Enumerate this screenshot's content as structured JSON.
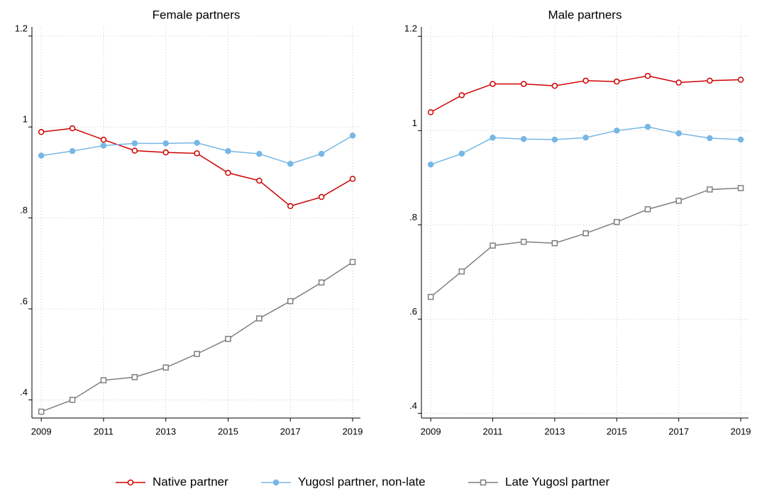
{
  "chart_data": [
    {
      "type": "line",
      "title": "Female partners",
      "x": [
        2009,
        2010,
        2011,
        2012,
        2013,
        2014,
        2015,
        2016,
        2017,
        2018,
        2019
      ],
      "xlim": [
        2008.7,
        2019.25
      ],
      "xticks": [
        2009,
        2011,
        2013,
        2015,
        2017,
        2019
      ],
      "ylim": [
        0.36,
        1.22
      ],
      "yticks": [
        {
          "value": 0.4,
          "label": ".4"
        },
        {
          "value": 0.6,
          "label": ".6"
        },
        {
          "value": 0.8,
          "label": ".8"
        },
        1,
        1.2
      ],
      "grid": true,
      "series": [
        {
          "name": "Native partner",
          "color": "#cc0000",
          "marker": "circle-open",
          "values": [
            0.989,
            0.997,
            0.972,
            0.948,
            0.944,
            0.942,
            0.899,
            0.882,
            0.826,
            0.846,
            0.886
          ]
        },
        {
          "name": "Yugosl partner, non-late",
          "color": "#76b7e5",
          "marker": "circle",
          "values": [
            0.937,
            0.947,
            0.959,
            0.964,
            0.964,
            0.965,
            0.947,
            0.941,
            0.919,
            0.941,
            0.981
          ]
        },
        {
          "name": "Late Yugosl partner",
          "color": "#7f7f7f",
          "marker": "square-open",
          "values": [
            0.374,
            0.4,
            0.443,
            0.45,
            0.471,
            0.501,
            0.534,
            0.579,
            0.617,
            0.658,
            0.703
          ]
        }
      ]
    },
    {
      "type": "line",
      "title": "Male partners",
      "x": [
        2009,
        2010,
        2011,
        2012,
        2013,
        2014,
        2015,
        2016,
        2017,
        2018,
        2019
      ],
      "xlim": [
        2008.7,
        2019.25
      ],
      "xticks": [
        2009,
        2011,
        2013,
        2015,
        2017,
        2019
      ],
      "ylim": [
        0.39,
        1.22
      ],
      "yticks": [
        {
          "value": 0.4,
          "label": ".4"
        },
        {
          "value": 0.6,
          "label": ".6"
        },
        {
          "value": 0.8,
          "label": ".8"
        },
        1,
        1.2
      ],
      "grid": true,
      "series": [
        {
          "color": "#cc0000",
          "marker": "circle-open",
          "values": [
            1.039,
            1.075,
            1.099,
            1.099,
            1.095,
            1.106,
            1.104,
            1.116,
            1.102,
            1.106,
            1.108
          ]
        },
        {
          "color": "#76b7e5",
          "marker": "circle",
          "values": [
            0.928,
            0.951,
            0.985,
            0.982,
            0.981,
            0.985,
            1.0,
            1.008,
            0.994,
            0.984,
            0.981
          ]
        },
        {
          "color": "#7f7f7f",
          "marker": "square-open",
          "values": [
            0.647,
            0.701,
            0.756,
            0.764,
            0.761,
            0.782,
            0.806,
            0.833,
            0.851,
            0.875,
            0.878
          ]
        }
      ]
    }
  ]
}
